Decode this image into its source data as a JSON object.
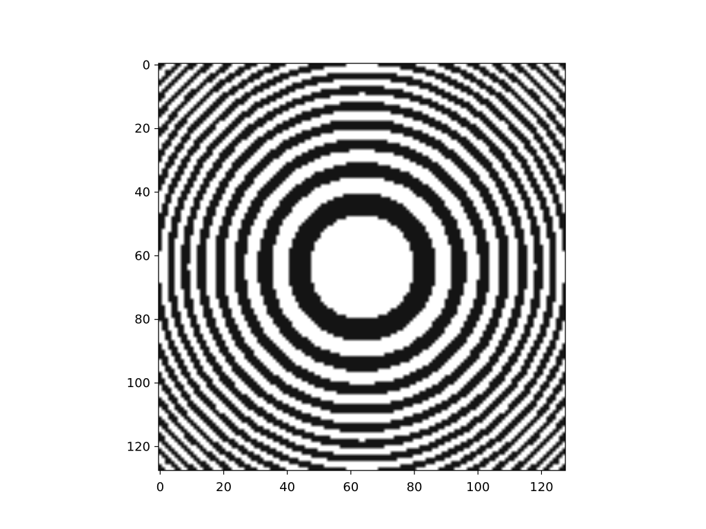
{
  "chart_data": {
    "type": "heatmap",
    "title": "",
    "xlabel": "",
    "ylabel": "",
    "xlim": [
      -0.5,
      127.5
    ],
    "ylim": [
      127.5,
      -0.5
    ],
    "y_axis_inverted": true,
    "image_size": [
      128,
      128
    ],
    "center": [
      63.5,
      63.5
    ],
    "colormap": "gray",
    "pattern": "concentric rings; dark where sin(r^2/k) < 0 (chirped radial sinusoid, rings get thinner outward)",
    "ring_parameter_k": 86,
    "ring_boundaries_radius": [
      0,
      3.5,
      17.5,
      22.5,
      31.5,
      34.5,
      42.5,
      44.5,
      52.5,
      54.5,
      61.5,
      63.5,
      68.5,
      70.5
    ],
    "x_ticks": [
      0,
      20,
      40,
      60,
      80,
      100,
      120
    ],
    "x_tick_labels": [
      "0",
      "20",
      "40",
      "60",
      "80",
      "100",
      "120"
    ],
    "y_ticks": [
      0,
      20,
      40,
      60,
      80,
      100,
      120
    ],
    "y_tick_labels": [
      "0",
      "20",
      "40",
      "60",
      "80",
      "100",
      "120"
    ],
    "grid": false,
    "legend": "none",
    "colors": {
      "dark": "#141414",
      "light": "#ffffff",
      "frame": "#000000"
    }
  }
}
